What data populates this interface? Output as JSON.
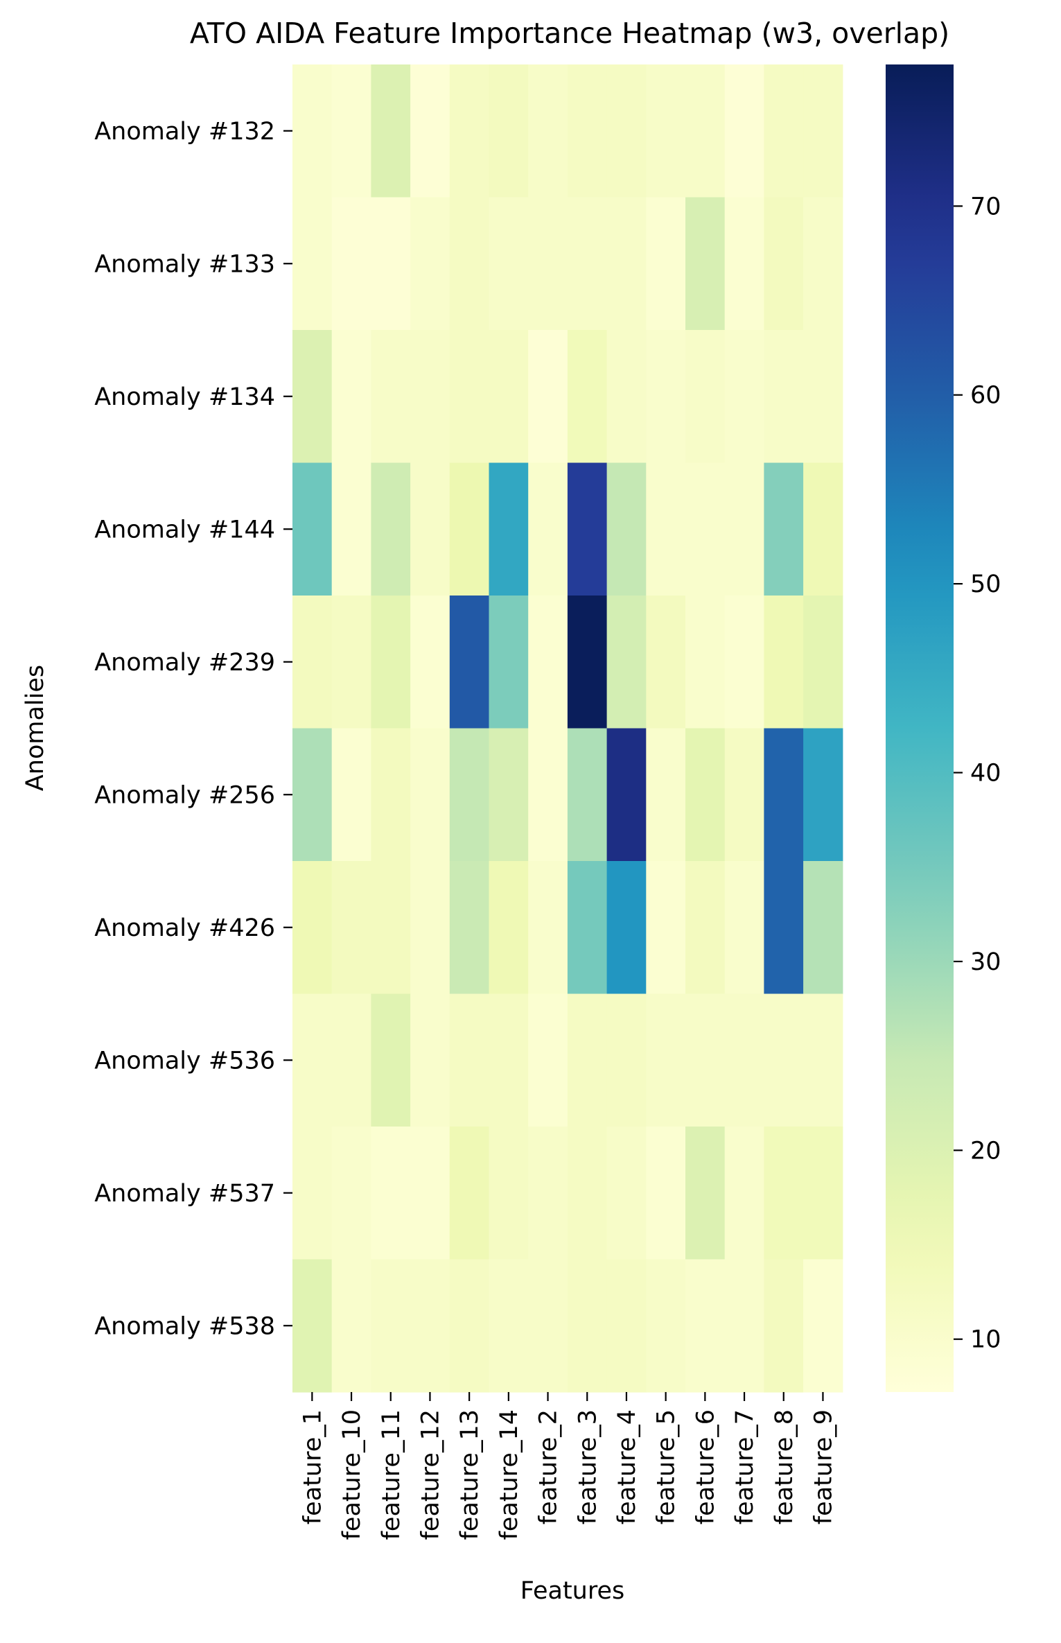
{
  "chart_data": {
    "type": "heatmap",
    "title": "ATO AIDA Feature Importance Heatmap (w3, overlap)",
    "xlabel": "Features",
    "ylabel": "Anomalies",
    "x_categories": [
      "feature_1",
      "feature_10",
      "feature_11",
      "feature_12",
      "feature_13",
      "feature_14",
      "feature_2",
      "feature_3",
      "feature_4",
      "feature_5",
      "feature_6",
      "feature_7",
      "feature_8",
      "feature_9"
    ],
    "y_categories": [
      "Anomaly #132",
      "Anomaly #133",
      "Anomaly #134",
      "Anomaly #144",
      "Anomaly #239",
      "Anomaly #256",
      "Anomaly #426",
      "Anomaly #536",
      "Anomaly #537",
      "Anomaly #538"
    ],
    "values": [
      [
        10,
        9,
        20,
        8,
        12,
        13,
        11,
        12,
        12,
        11,
        11,
        8,
        12,
        12
      ],
      [
        10,
        8,
        8,
        10,
        12,
        11,
        11,
        11,
        11,
        9,
        21,
        9,
        13,
        11
      ],
      [
        20,
        9,
        11,
        11,
        12,
        12,
        8,
        14,
        11,
        10,
        11,
        10,
        11,
        11
      ],
      [
        36,
        9,
        23,
        11,
        16,
        46,
        10,
        67,
        25,
        10,
        10,
        10,
        33,
        15
      ],
      [
        13,
        12,
        18,
        9,
        61,
        34,
        9,
        77,
        22,
        13,
        10,
        9,
        15,
        18
      ],
      [
        28,
        9,
        13,
        10,
        25,
        21,
        9,
        28,
        71,
        10,
        18,
        12,
        59,
        47
      ],
      [
        15,
        13,
        13,
        10,
        24,
        15,
        10,
        35,
        50,
        9,
        13,
        10,
        59,
        27
      ],
      [
        11,
        11,
        19,
        10,
        12,
        12,
        9,
        12,
        12,
        11,
        11,
        11,
        11,
        11
      ],
      [
        11,
        10,
        9,
        9,
        15,
        12,
        11,
        12,
        11,
        9,
        20,
        10,
        14,
        14
      ],
      [
        19,
        10,
        11,
        11,
        12,
        11,
        11,
        12,
        12,
        11,
        10,
        10,
        13,
        9
      ]
    ],
    "colormap": "YlGnBu",
    "colorbar": {
      "vmin": 7.2,
      "vmax": 77.5,
      "ticks": [
        10,
        20,
        30,
        40,
        50,
        60,
        70
      ],
      "tick_labels": [
        "10",
        "20",
        "30",
        "40",
        "50",
        "60",
        "70"
      ]
    },
    "colorbar_placement": "right",
    "grid": false
  }
}
